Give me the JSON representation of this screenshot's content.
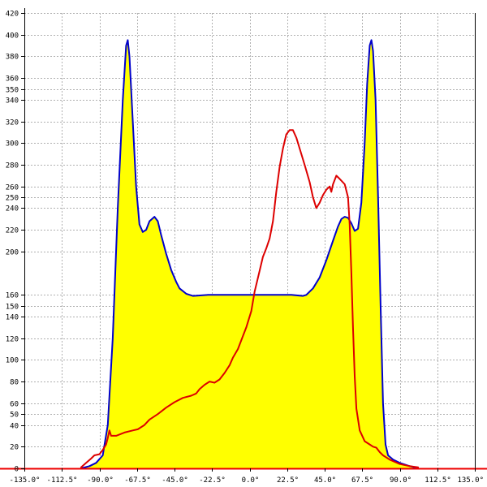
{
  "chart_data": {
    "type": "area",
    "grid": true,
    "xlim": [
      -135,
      135
    ],
    "ylim": [
      0,
      420
    ],
    "x_ticks": [
      -135,
      -112.5,
      -90,
      -67.5,
      -45,
      -22.5,
      0,
      22.5,
      45,
      67.5,
      90,
      112.5,
      135
    ],
    "x_tick_labels": [
      "-135.0°",
      "-112.5°",
      "-90.0°",
      "-67.5°",
      "-45.0°",
      "-22.5°",
      "0.0°",
      "22.5°",
      "45.0°",
      "67.5°",
      "90.0°",
      "112.5°",
      "135.0°"
    ],
    "y_ticks": [
      0,
      20,
      40,
      50,
      60,
      80,
      100,
      120,
      140,
      150,
      160,
      200,
      220,
      240,
      250,
      260,
      280,
      300,
      320,
      340,
      350,
      360,
      380,
      400,
      420
    ],
    "y_tick_labels": [
      "0",
      "20",
      "40",
      "50",
      "60",
      "80",
      "100",
      "120",
      "140",
      "150",
      "160",
      "200",
      "220",
      "240",
      "250",
      "260",
      "280",
      "300",
      "320",
      "340",
      "350",
      "360",
      "380",
      "400",
      "420"
    ],
    "series": [
      {
        "color": "#0000cc",
        "fill": "#ffff00",
        "points": [
          [
            -101,
            0
          ],
          [
            -96,
            2
          ],
          [
            -92,
            5
          ],
          [
            -88,
            12
          ],
          [
            -85,
            40
          ],
          [
            -82,
            120
          ],
          [
            -79,
            240
          ],
          [
            -76,
            340
          ],
          [
            -74,
            390
          ],
          [
            -73,
            395
          ],
          [
            -72,
            380
          ],
          [
            -70,
            320
          ],
          [
            -68,
            260
          ],
          [
            -66,
            225
          ],
          [
            -64,
            218
          ],
          [
            -62,
            220
          ],
          [
            -60,
            228
          ],
          [
            -57,
            232
          ],
          [
            -55,
            228
          ],
          [
            -53,
            215
          ],
          [
            -50,
            198
          ],
          [
            -47,
            183
          ],
          [
            -44,
            172
          ],
          [
            -42,
            166
          ],
          [
            -38,
            161
          ],
          [
            -34,
            159
          ],
          [
            -25,
            160
          ],
          [
            -10,
            160
          ],
          [
            0,
            160
          ],
          [
            10,
            160
          ],
          [
            25,
            160
          ],
          [
            32,
            159
          ],
          [
            34,
            160
          ],
          [
            38,
            166
          ],
          [
            42,
            176
          ],
          [
            46,
            192
          ],
          [
            50,
            210
          ],
          [
            53,
            223
          ],
          [
            55,
            230
          ],
          [
            57,
            232
          ],
          [
            59,
            231
          ],
          [
            61,
            226
          ],
          [
            63,
            219
          ],
          [
            65,
            221
          ],
          [
            67,
            245
          ],
          [
            69,
            300
          ],
          [
            70.5,
            355
          ],
          [
            72,
            390
          ],
          [
            73,
            395
          ],
          [
            74,
            385
          ],
          [
            75.5,
            340
          ],
          [
            77,
            250
          ],
          [
            78.5,
            150
          ],
          [
            80,
            60
          ],
          [
            81.5,
            22
          ],
          [
            83,
            12
          ],
          [
            86,
            8
          ],
          [
            90,
            5
          ],
          [
            96,
            2
          ],
          [
            101,
            0
          ]
        ]
      },
      {
        "color": "#dd0000",
        "points": [
          [
            -101,
            1
          ],
          [
            -98,
            5
          ],
          [
            -95,
            9
          ],
          [
            -93,
            12
          ],
          [
            -90,
            13
          ],
          [
            -88,
            17
          ],
          [
            -86,
            22
          ],
          [
            -85,
            28
          ],
          [
            -84,
            35
          ],
          [
            -83,
            30
          ],
          [
            -80,
            30
          ],
          [
            -75,
            33
          ],
          [
            -70,
            35
          ],
          [
            -67,
            36
          ],
          [
            -63,
            40
          ],
          [
            -60,
            45
          ],
          [
            -55,
            50
          ],
          [
            -50,
            56
          ],
          [
            -45,
            61
          ],
          [
            -40,
            65
          ],
          [
            -35,
            67
          ],
          [
            -32,
            69
          ],
          [
            -30,
            73
          ],
          [
            -27,
            77
          ],
          [
            -24,
            80
          ],
          [
            -21,
            79
          ],
          [
            -18,
            82
          ],
          [
            -15,
            88
          ],
          [
            -12,
            95
          ],
          [
            -10,
            102
          ],
          [
            -7,
            110
          ],
          [
            -4,
            122
          ],
          [
            -2,
            130
          ],
          [
            1,
            145
          ],
          [
            3,
            163
          ],
          [
            6,
            182
          ],
          [
            8,
            195
          ],
          [
            10,
            203
          ],
          [
            12,
            212
          ],
          [
            14,
            228
          ],
          [
            16,
            255
          ],
          [
            18,
            278
          ],
          [
            20,
            295
          ],
          [
            22,
            308
          ],
          [
            24,
            312
          ],
          [
            26,
            312
          ],
          [
            28,
            305
          ],
          [
            30,
            295
          ],
          [
            33,
            280
          ],
          [
            36,
            264
          ],
          [
            38,
            250
          ],
          [
            40,
            240
          ],
          [
            42,
            245
          ],
          [
            44,
            252
          ],
          [
            46,
            257
          ],
          [
            48,
            260
          ],
          [
            49,
            255
          ],
          [
            50,
            262
          ],
          [
            52,
            270
          ],
          [
            54,
            267
          ],
          [
            57,
            262
          ],
          [
            59,
            250
          ],
          [
            60,
            225
          ],
          [
            61,
            180
          ],
          [
            62,
            130
          ],
          [
            63,
            85
          ],
          [
            64,
            55
          ],
          [
            66,
            35
          ],
          [
            69,
            25
          ],
          [
            72,
            22
          ],
          [
            74,
            20
          ],
          [
            76,
            19
          ],
          [
            78,
            15
          ],
          [
            80,
            12
          ],
          [
            84,
            8
          ],
          [
            90,
            4
          ],
          [
            96,
            2
          ],
          [
            101,
            1
          ]
        ]
      }
    ]
  }
}
